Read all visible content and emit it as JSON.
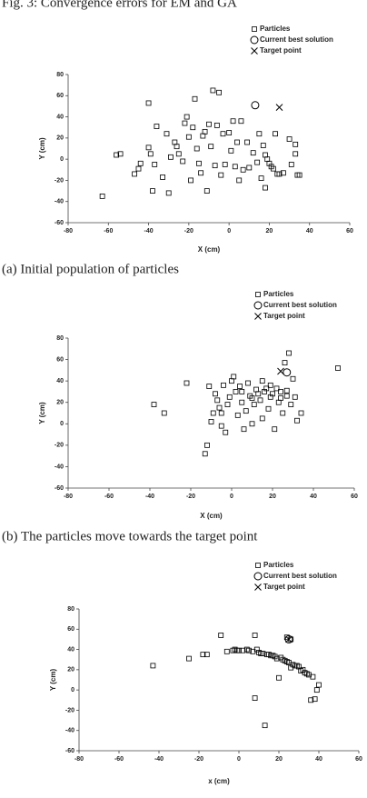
{
  "figure_title": "Fig. 3: Convergence errors for EM and GA",
  "chart_data": [
    {
      "type": "scatter",
      "caption": "(a)  Initial population of particles",
      "xlabel": "X (cm)",
      "ylabel": "Y (cm)",
      "xlim": [
        -80,
        60
      ],
      "ylim": [
        -60,
        80
      ],
      "xticks": [
        -80,
        -60,
        -40,
        -20,
        0,
        20,
        40,
        60
      ],
      "yticks": [
        -60,
        -40,
        -20,
        0,
        20,
        40,
        60,
        80
      ],
      "legend": "top-right",
      "series": [
        {
          "name": "Particles",
          "marker": "square",
          "color": "#000000",
          "x": [
            -63,
            -56,
            -54,
            -47,
            -45,
            -44,
            -40,
            -40,
            -39,
            -38,
            -37,
            -36,
            -33,
            -31,
            -30,
            -29,
            -27,
            -26,
            -25,
            -23,
            -22,
            -21,
            -20,
            -19,
            -18,
            -17,
            -16,
            -15,
            -14,
            -13,
            -12,
            -11,
            -10,
            -9,
            -8,
            -7,
            -6,
            -5,
            -4,
            -3,
            -2,
            0,
            1,
            2,
            3,
            4,
            5,
            6,
            7,
            9,
            10,
            12,
            14,
            15,
            16,
            17,
            18,
            19,
            20,
            21,
            22,
            23,
            24,
            25,
            27,
            18,
            30,
            31,
            33,
            34,
            33,
            35
          ],
          "y": [
            -35,
            4,
            5,
            -14,
            -9,
            -4,
            53,
            11,
            5,
            -30,
            -5,
            31,
            -17,
            24,
            -32,
            2,
            16,
            12,
            5,
            -2,
            34,
            40,
            21,
            -20,
            30,
            57,
            10,
            -4,
            -13,
            22,
            26,
            -30,
            33,
            12,
            65,
            -6,
            32,
            63,
            -15,
            24,
            -5,
            25,
            8,
            36,
            -7,
            16,
            -20,
            36,
            -10,
            16,
            -8,
            6,
            -3,
            24,
            -18,
            13,
            4,
            0,
            -4,
            -7,
            -9,
            24,
            -14,
            -14,
            -13,
            -27,
            19,
            -5,
            14,
            -15,
            5,
            -15
          ]
        },
        {
          "name": "Current best solution",
          "marker": "circle",
          "color": "#000000",
          "x": [
            13
          ],
          "y": [
            51
          ]
        },
        {
          "name": "Target point",
          "marker": "cross",
          "color": "#000000",
          "x": [
            25
          ],
          "y": [
            49
          ]
        }
      ]
    },
    {
      "type": "scatter",
      "caption": "(b)  The particles move towards the target point",
      "xlabel": "X (cm)",
      "ylabel": "Y (cm)",
      "xlim": [
        -80,
        60
      ],
      "ylim": [
        -60,
        80
      ],
      "xticks": [
        -80,
        -60,
        -40,
        -20,
        0,
        20,
        40,
        60
      ],
      "yticks": [
        -60,
        -40,
        -20,
        0,
        20,
        40,
        60,
        80
      ],
      "legend": "top-right",
      "series": [
        {
          "name": "Particles",
          "marker": "square",
          "color": "#000000",
          "x": [
            -38,
            -33,
            -22,
            -13,
            -12,
            -11,
            -10,
            -9,
            -8,
            -7,
            -6,
            -5,
            -4,
            -3,
            -2,
            -1,
            0,
            1,
            2,
            3,
            4,
            5,
            6,
            7,
            8,
            9,
            10,
            11,
            12,
            13,
            14,
            15,
            16,
            17,
            18,
            19,
            20,
            21,
            22,
            23,
            24,
            25,
            26,
            27,
            28,
            29,
            30,
            31,
            32,
            34,
            52,
            15,
            19,
            10,
            5,
            -5,
            24,
            27
          ],
          "y": [
            18,
            10,
            38,
            -28,
            -20,
            35,
            2,
            10,
            28,
            22,
            15,
            -2,
            36,
            -8,
            18,
            25,
            40,
            44,
            30,
            8,
            35,
            20,
            -5,
            12,
            38,
            26,
            0,
            18,
            32,
            28,
            22,
            5,
            30,
            33,
            14,
            25,
            28,
            -5,
            33,
            20,
            30,
            10,
            57,
            31,
            66,
            18,
            42,
            25,
            3,
            10,
            52,
            40,
            36,
            24,
            30,
            10,
            24,
            26
          ]
        },
        {
          "name": "Current best solution",
          "marker": "circle",
          "color": "#000000",
          "x": [
            27
          ],
          "y": [
            48
          ]
        },
        {
          "name": "Target point",
          "marker": "cross",
          "color": "#000000",
          "x": [
            24
          ],
          "y": [
            49
          ]
        }
      ]
    },
    {
      "type": "scatter",
      "xlabel": "x (cm)",
      "ylabel": "Y (cm)",
      "xlim": [
        -80,
        60
      ],
      "ylim": [
        -60,
        80
      ],
      "xticks": [
        -80,
        -60,
        -40,
        -20,
        0,
        20,
        40,
        60
      ],
      "yticks": [
        -60,
        -40,
        -20,
        0,
        20,
        40,
        60,
        80
      ],
      "legend": "top-right",
      "series": [
        {
          "name": "Particles",
          "marker": "square",
          "color": "#000000",
          "x": [
            -43,
            -25,
            -18,
            -16,
            -9,
            -6,
            -3,
            -1,
            0,
            2,
            4,
            5,
            7,
            8,
            8,
            10,
            11,
            12,
            13,
            14,
            15,
            16,
            17,
            18,
            19,
            20,
            21,
            22,
            23,
            24,
            25,
            26,
            27,
            28,
            29,
            30,
            31,
            32,
            33,
            34,
            35,
            36,
            37,
            38,
            39,
            40,
            -2,
            9,
            24,
            26
          ],
          "y": [
            24,
            31,
            35,
            35,
            54,
            38,
            39,
            39,
            39,
            39,
            40,
            39,
            38,
            54,
            -8,
            37,
            36,
            36,
            -35,
            35,
            35,
            34,
            34,
            33,
            31,
            12,
            32,
            30,
            29,
            28,
            27,
            22,
            25,
            24,
            24,
            23,
            19,
            20,
            17,
            16,
            15,
            -10,
            13,
            -9,
            0,
            5,
            40,
            40,
            52,
            50
          ]
        },
        {
          "name": "Current best solution",
          "marker": "circle",
          "color": "#000000",
          "x": [
            25
          ],
          "y": [
            50
          ]
        },
        {
          "name": "Target point",
          "marker": "cross",
          "color": "#000000",
          "x": [
            25
          ],
          "y": [
            50
          ]
        }
      ]
    }
  ]
}
